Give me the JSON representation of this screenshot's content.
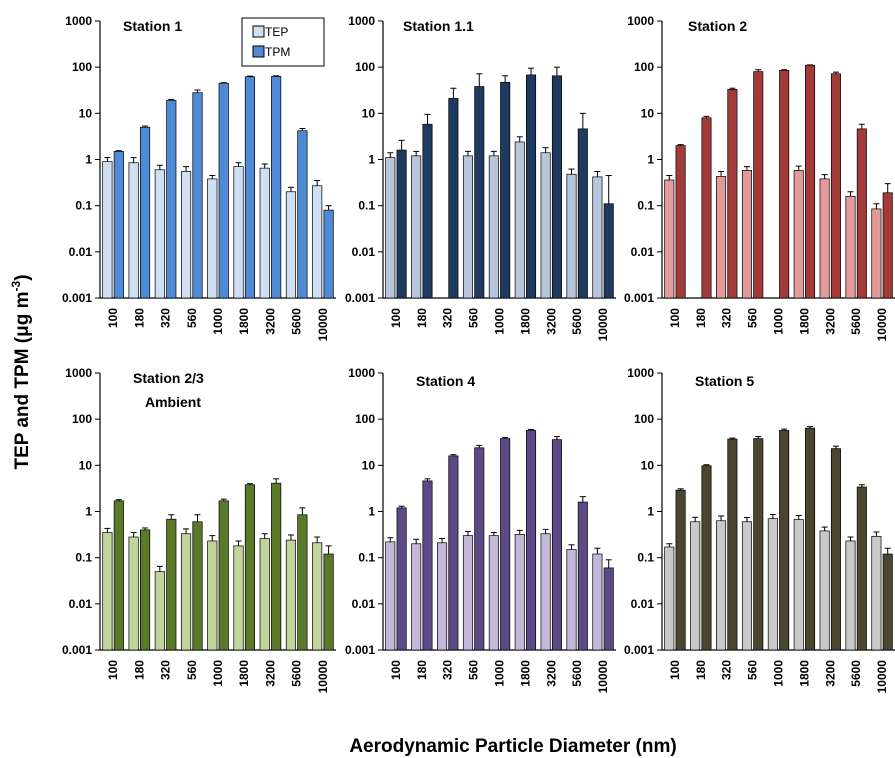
{
  "chart_data": [
    {
      "type": "bar",
      "title": "Station 1",
      "categories": [
        "100",
        "180",
        "320",
        "560",
        "1000",
        "1800",
        "3200",
        "5600",
        "10000"
      ],
      "yscale": "log",
      "ylim": [
        0.001,
        1000
      ],
      "yticks": [
        "0.001",
        "0.01",
        "0.1",
        "1",
        "10",
        "100",
        "1000"
      ],
      "series": [
        {
          "name": "TEP",
          "color": "#cfe0f3",
          "values": [
            0.9,
            0.85,
            0.6,
            0.55,
            0.38,
            0.7,
            0.65,
            0.2,
            0.27
          ],
          "errors": [
            1.1,
            1.1,
            0.75,
            0.7,
            0.45,
            0.85,
            0.8,
            0.25,
            0.35
          ]
        },
        {
          "name": "TPM",
          "color": "#4e8ad6",
          "values": [
            1.5,
            5.0,
            19,
            28,
            45,
            62,
            63,
            4.2,
            0.08
          ],
          "errors": [
            1.55,
            5.3,
            20,
            32,
            46,
            64,
            65,
            4.7,
            0.1
          ]
        }
      ]
    },
    {
      "type": "bar",
      "title": "Station 1.1",
      "categories": [
        "100",
        "180",
        "320",
        "560",
        "1000",
        "1800",
        "3200",
        "5600",
        "10000"
      ],
      "yscale": "log",
      "ylim": [
        0.001,
        1000
      ],
      "yticks": [
        "0.001",
        "0.01",
        "0.1",
        "1",
        "10",
        "100",
        "1000"
      ],
      "series": [
        {
          "name": "TEP",
          "color": "#b7c6db",
          "values": [
            1.1,
            1.2,
            null,
            1.2,
            1.2,
            2.4,
            1.4,
            0.48,
            0.42
          ],
          "errors": [
            1.4,
            1.5,
            null,
            1.5,
            1.5,
            3.1,
            1.8,
            0.62,
            0.55
          ]
        },
        {
          "name": "TPM",
          "color": "#1f3a5f",
          "values": [
            1.6,
            5.8,
            21,
            38,
            47,
            68,
            65,
            4.6,
            0.11
          ],
          "errors": [
            2.6,
            9.5,
            35,
            72,
            65,
            95,
            100,
            10,
            0.45
          ]
        }
      ]
    },
    {
      "type": "bar",
      "title": "Station 2",
      "categories": [
        "100",
        "180",
        "320",
        "560",
        "1000",
        "1800",
        "3200",
        "5600",
        "10000"
      ],
      "yscale": "log",
      "ylim": [
        0.001,
        1000
      ],
      "yticks": [
        "0.001",
        "0.01",
        "0.1",
        "1",
        "10",
        "100",
        "1000"
      ],
      "series": [
        {
          "name": "TEP",
          "color": "#e29a9a",
          "values": [
            0.36,
            null,
            0.43,
            0.58,
            null,
            0.58,
            0.38,
            0.16,
            0.085
          ],
          "errors": [
            0.45,
            null,
            0.55,
            0.7,
            null,
            0.72,
            0.47,
            0.2,
            0.11
          ]
        },
        {
          "name": "TPM",
          "color": "#a33a3a",
          "values": [
            2.0,
            8.0,
            33,
            80,
            85,
            110,
            72,
            4.6,
            0.19
          ],
          "errors": [
            2.1,
            8.6,
            35,
            88,
            88,
            112,
            78,
            5.8,
            0.3
          ]
        }
      ]
    },
    {
      "type": "bar",
      "title": "Station 2/3",
      "subtitle": "Ambient",
      "categories": [
        "100",
        "180",
        "320",
        "560",
        "1000",
        "1800",
        "3200",
        "5600",
        "10000"
      ],
      "yscale": "log",
      "ylim": [
        0.001,
        1000
      ],
      "yticks": [
        "0.001",
        "0.01",
        "0.1",
        "1",
        "10",
        "100",
        "1000"
      ],
      "series": [
        {
          "name": "TEP",
          "color": "#bfd59a",
          "values": [
            0.35,
            0.28,
            0.05,
            0.33,
            0.23,
            0.18,
            0.26,
            0.24,
            0.21
          ],
          "errors": [
            0.43,
            0.35,
            0.065,
            0.42,
            0.3,
            0.23,
            0.33,
            0.31,
            0.28
          ]
        },
        {
          "name": "TPM",
          "color": "#5a7a2a",
          "values": [
            1.7,
            0.4,
            0.68,
            0.6,
            1.7,
            3.8,
            4.1,
            0.85,
            0.12
          ],
          "errors": [
            1.8,
            0.44,
            0.85,
            0.85,
            1.85,
            4.0,
            5.1,
            1.2,
            0.18
          ]
        }
      ]
    },
    {
      "type": "bar",
      "title": "Station 4",
      "categories": [
        "100",
        "180",
        "320",
        "560",
        "1000",
        "1800",
        "3200",
        "5600",
        "10000"
      ],
      "yscale": "log",
      "ylim": [
        0.001,
        1000
      ],
      "yticks": [
        "0.001",
        "0.01",
        "0.1",
        "1",
        "10",
        "100",
        "1000"
      ],
      "series": [
        {
          "name": "TEP",
          "color": "#c4b8da",
          "values": [
            0.22,
            0.2,
            0.21,
            0.3,
            0.3,
            0.32,
            0.33,
            0.15,
            0.12
          ],
          "errors": [
            0.27,
            0.25,
            0.26,
            0.37,
            0.35,
            0.39,
            0.41,
            0.19,
            0.16
          ]
        },
        {
          "name": "TPM",
          "color": "#5c4a86",
          "values": [
            1.2,
            4.6,
            16,
            24,
            38,
            57,
            36,
            1.6,
            0.06
          ],
          "errors": [
            1.3,
            5.1,
            17,
            27,
            40,
            60,
            42,
            2.1,
            0.09
          ]
        }
      ]
    },
    {
      "type": "bar",
      "title": "Station 5",
      "categories": [
        "100",
        "180",
        "320",
        "560",
        "1000",
        "1800",
        "3200",
        "5600",
        "10000"
      ],
      "yscale": "log",
      "ylim": [
        0.001,
        1000
      ],
      "yticks": [
        "0.001",
        "0.01",
        "0.1",
        "1",
        "10",
        "100",
        "1000"
      ],
      "series": [
        {
          "name": "TEP",
          "color": "#c9c9c9",
          "values": [
            0.17,
            0.6,
            0.63,
            0.6,
            0.7,
            0.67,
            0.38,
            0.23,
            0.29
          ],
          "errors": [
            0.2,
            0.75,
            0.8,
            0.74,
            0.86,
            0.82,
            0.46,
            0.28,
            0.36
          ]
        },
        {
          "name": "TPM",
          "color": "#4a4630",
          "values": [
            2.9,
            9.8,
            37,
            38,
            57,
            64,
            23,
            3.4,
            0.12
          ],
          "errors": [
            3.1,
            10.3,
            39,
            42,
            61,
            69,
            26,
            3.8,
            0.16
          ]
        }
      ]
    }
  ],
  "legend": {
    "items": [
      "TEP",
      "TPM"
    ],
    "colors": [
      "#cfe0f3",
      "#4e8ad6"
    ]
  },
  "ylabel_main": "TEP and TPM (μg m",
  "ylabel_sup": "-3",
  "ylabel_close": ")",
  "xlabel": "Aerodynamic Particle Diameter (nm)"
}
